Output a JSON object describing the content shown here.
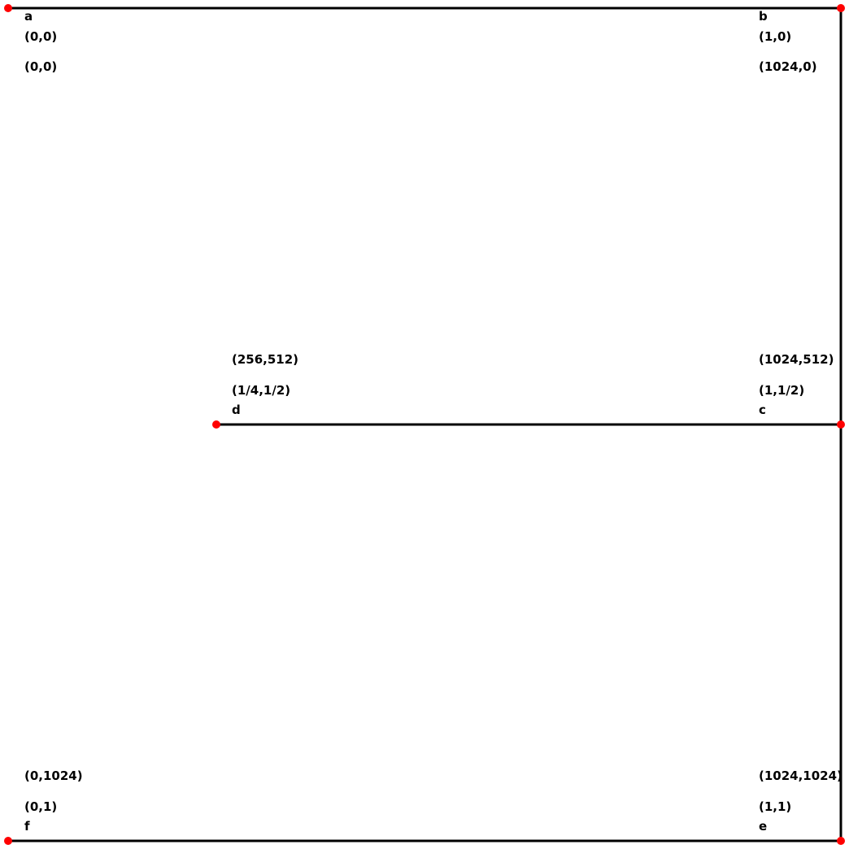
{
  "points": [
    {
      "letter": "a",
      "norm": "(0,0)",
      "pixel": "(0,0)"
    },
    {
      "letter": "b",
      "norm": "(1,0)",
      "pixel": "(1024,0)"
    },
    {
      "letter": "c",
      "norm": "(1,1/2)",
      "pixel": "(1024,512)"
    },
    {
      "letter": "d",
      "norm": "(1/4,1/2)",
      "pixel": "(256,512)"
    },
    {
      "letter": "e",
      "norm": "(1,1)",
      "pixel": "(1024,1024)"
    },
    {
      "letter": "f",
      "norm": "(0,1)",
      "pixel": "(0,1024)"
    }
  ],
  "colors": {
    "line": "#000000",
    "point": "#ff0000",
    "text": "#000000"
  }
}
